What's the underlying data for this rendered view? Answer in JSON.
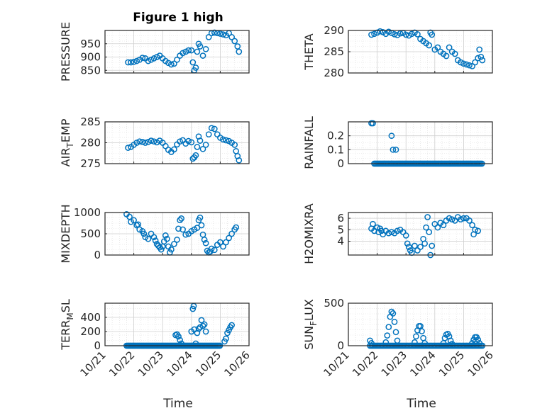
{
  "figure": {
    "title": "Figure 1 high",
    "xlabel": "Time"
  },
  "colors": {
    "marker": "#0072BD",
    "axis": "#262626",
    "grid": "#dcdcdc",
    "background": "#ffffff"
  },
  "chart_data": [
    {
      "id": "pressure",
      "type": "scatter",
      "title": "Figure 1 high",
      "ylabel": "PRESSURE",
      "ylim": [
        840,
        1000
      ],
      "yticks": [
        850,
        900,
        950
      ],
      "ytick_labels": [
        "850",
        "900",
        "950"
      ],
      "xlim": [
        "10/21",
        "10/26"
      ],
      "grid": true,
      "xtick_labels_visible": false,
      "points": [
        [
          21.8,
          880
        ],
        [
          21.9,
          880
        ],
        [
          22.0,
          882
        ],
        [
          22.1,
          885
        ],
        [
          22.2,
          890
        ],
        [
          22.3,
          897
        ],
        [
          22.4,
          895
        ],
        [
          22.5,
          885
        ],
        [
          22.6,
          890
        ],
        [
          22.7,
          895
        ],
        [
          22.8,
          900
        ],
        [
          22.9,
          905
        ],
        [
          23.0,
          895
        ],
        [
          23.1,
          885
        ],
        [
          23.2,
          878
        ],
        [
          23.3,
          872
        ],
        [
          23.4,
          875
        ],
        [
          23.5,
          890
        ],
        [
          23.6,
          905
        ],
        [
          23.7,
          915
        ],
        [
          23.8,
          920
        ],
        [
          23.9,
          925
        ],
        [
          24.0,
          925
        ],
        [
          24.05,
          880
        ],
        [
          24.1,
          850
        ],
        [
          24.15,
          860
        ],
        [
          24.2,
          920
        ],
        [
          24.25,
          950
        ],
        [
          24.3,
          940
        ],
        [
          24.4,
          905
        ],
        [
          24.5,
          930
        ],
        [
          24.6,
          975
        ],
        [
          24.7,
          990
        ],
        [
          24.8,
          992
        ],
        [
          24.9,
          990
        ],
        [
          25.0,
          988
        ],
        [
          25.1,
          985
        ],
        [
          25.2,
          982
        ],
        [
          25.3,
          990
        ],
        [
          25.4,
          975
        ],
        [
          25.5,
          960
        ],
        [
          25.6,
          940
        ],
        [
          25.65,
          920
        ]
      ]
    },
    {
      "id": "theta",
      "type": "scatter",
      "ylabel": "THETA",
      "ylim": [
        280,
        290
      ],
      "yticks": [
        280,
        285,
        290
      ],
      "ytick_labels": [
        "280",
        "285",
        "290"
      ],
      "xlim": [
        "10/21",
        "10/26"
      ],
      "grid": true,
      "xtick_labels_visible": false,
      "points": [
        [
          21.8,
          289
        ],
        [
          21.9,
          289.2
        ],
        [
          22.0,
          289.5
        ],
        [
          22.1,
          289.8
        ],
        [
          22.2,
          289.6
        ],
        [
          22.3,
          289.2
        ],
        [
          22.4,
          289.7
        ],
        [
          22.5,
          289.4
        ],
        [
          22.6,
          289.1
        ],
        [
          22.7,
          288.9
        ],
        [
          22.8,
          289.3
        ],
        [
          22.9,
          289.4
        ],
        [
          23.0,
          289.0
        ],
        [
          23.1,
          288.8
        ],
        [
          23.2,
          289.2
        ],
        [
          23.3,
          289.5
        ],
        [
          23.4,
          289.1
        ],
        [
          23.5,
          288.0
        ],
        [
          23.6,
          287.5
        ],
        [
          23.7,
          287.0
        ],
        [
          23.8,
          286.5
        ],
        [
          23.85,
          289.5
        ],
        [
          23.9,
          289.0
        ],
        [
          24.0,
          285.5
        ],
        [
          24.1,
          286.0
        ],
        [
          24.2,
          285.0
        ],
        [
          24.3,
          284.5
        ],
        [
          24.4,
          284.0
        ],
        [
          24.5,
          286.0
        ],
        [
          24.6,
          285.0
        ],
        [
          24.7,
          284.5
        ],
        [
          24.8,
          283.0
        ],
        [
          24.9,
          282.5
        ],
        [
          25.0,
          282.2
        ],
        [
          25.1,
          282.0
        ],
        [
          25.2,
          281.8
        ],
        [
          25.3,
          281.6
        ],
        [
          25.4,
          282.5
        ],
        [
          25.5,
          283.5
        ],
        [
          25.55,
          285.5
        ],
        [
          25.6,
          283.8
        ],
        [
          25.65,
          283.0
        ]
      ]
    },
    {
      "id": "air_temp",
      "type": "scatter",
      "ylabel": "AIR_TEMP",
      "ylabel_subscript": "T",
      "ylim": [
        275,
        285
      ],
      "yticks": [
        275,
        280,
        285
      ],
      "ytick_labels": [
        "275",
        "280",
        "285"
      ],
      "xlim": [
        "10/21",
        "10/26"
      ],
      "grid": true,
      "xtick_labels_visible": false,
      "points": [
        [
          21.8,
          278.8
        ],
        [
          21.9,
          279
        ],
        [
          22.0,
          279.5
        ],
        [
          22.1,
          280
        ],
        [
          22.2,
          280.3
        ],
        [
          22.3,
          280.2
        ],
        [
          22.4,
          280
        ],
        [
          22.5,
          280.2
        ],
        [
          22.6,
          280.5
        ],
        [
          22.7,
          280.3
        ],
        [
          22.8,
          280.1
        ],
        [
          22.9,
          280.5
        ],
        [
          23.0,
          280
        ],
        [
          23.1,
          279.2
        ],
        [
          23.2,
          278.3
        ],
        [
          23.3,
          277.8
        ],
        [
          23.4,
          278.4
        ],
        [
          23.5,
          279.6
        ],
        [
          23.6,
          280.3
        ],
        [
          23.7,
          280.6
        ],
        [
          23.8,
          279.8
        ],
        [
          23.9,
          280.4
        ],
        [
          24.0,
          280.1
        ],
        [
          24.05,
          276.2
        ],
        [
          24.1,
          276.5
        ],
        [
          24.15,
          277
        ],
        [
          24.2,
          279
        ],
        [
          24.25,
          281.5
        ],
        [
          24.3,
          280.5
        ],
        [
          24.4,
          278.5
        ],
        [
          24.5,
          279.5
        ],
        [
          24.6,
          282
        ],
        [
          24.7,
          283.5
        ],
        [
          24.8,
          283.3
        ],
        [
          24.9,
          282
        ],
        [
          25.0,
          281.2
        ],
        [
          25.1,
          280.8
        ],
        [
          25.2,
          280.6
        ],
        [
          25.3,
          280.4
        ],
        [
          25.4,
          280
        ],
        [
          25.5,
          279.5
        ],
        [
          25.55,
          278
        ],
        [
          25.6,
          276.8
        ],
        [
          25.65,
          275.8
        ]
      ]
    },
    {
      "id": "rainfall",
      "type": "scatter",
      "ylabel": "RAINFALL",
      "ylim": [
        0,
        0.3
      ],
      "yticks": [
        0,
        0.1,
        0.2
      ],
      "ytick_labels": [
        "0",
        "0.1",
        "0.2"
      ],
      "xlim": [
        "10/21",
        "10/26"
      ],
      "grid": true,
      "xtick_labels_visible": false,
      "zero_run": {
        "x_start": 21.9,
        "x_end": 25.65,
        "step": 0.045
      },
      "points": [
        [
          21.8,
          0.29
        ],
        [
          21.85,
          0.29
        ],
        [
          22.5,
          0.2
        ],
        [
          22.55,
          0.1
        ],
        [
          22.65,
          0.1
        ]
      ]
    },
    {
      "id": "mixdepth",
      "type": "scatter",
      "ylabel": "MIXDEPTH",
      "ylim": [
        0,
        1000
      ],
      "yticks": [
        0,
        500,
        1000
      ],
      "ytick_labels": [
        "0",
        "500",
        "1000"
      ],
      "xlim": [
        "10/21",
        "10/26"
      ],
      "grid": true,
      "xtick_labels_visible": false,
      "points": [
        [
          21.75,
          960
        ],
        [
          21.85,
          900
        ],
        [
          21.9,
          780
        ],
        [
          22.0,
          820
        ],
        [
          22.1,
          700
        ],
        [
          22.15,
          720
        ],
        [
          22.2,
          600
        ],
        [
          22.3,
          560
        ],
        [
          22.35,
          500
        ],
        [
          22.4,
          420
        ],
        [
          22.5,
          380
        ],
        [
          22.6,
          500
        ],
        [
          22.7,
          420
        ],
        [
          22.75,
          340
        ],
        [
          22.8,
          260
        ],
        [
          22.85,
          220
        ],
        [
          22.9,
          180
        ],
        [
          22.95,
          130
        ],
        [
          23.0,
          200
        ],
        [
          23.05,
          320
        ],
        [
          23.1,
          460
        ],
        [
          23.15,
          380
        ],
        [
          23.2,
          200
        ],
        [
          23.25,
          60
        ],
        [
          23.3,
          130
        ],
        [
          23.4,
          260
        ],
        [
          23.5,
          360
        ],
        [
          23.55,
          620
        ],
        [
          23.6,
          820
        ],
        [
          23.65,
          860
        ],
        [
          23.7,
          600
        ],
        [
          23.8,
          480
        ],
        [
          23.9,
          500
        ],
        [
          24.0,
          560
        ],
        [
          24.1,
          600
        ],
        [
          24.2,
          640
        ],
        [
          24.25,
          820
        ],
        [
          24.3,
          880
        ],
        [
          24.35,
          700
        ],
        [
          24.4,
          480
        ],
        [
          24.45,
          360
        ],
        [
          24.5,
          280
        ],
        [
          24.55,
          100
        ],
        [
          24.6,
          60
        ],
        [
          24.65,
          80
        ],
        [
          24.7,
          150
        ],
        [
          24.8,
          120
        ],
        [
          24.9,
          240
        ],
        [
          25.0,
          300
        ],
        [
          25.1,
          200
        ],
        [
          25.2,
          300
        ],
        [
          25.3,
          400
        ],
        [
          25.4,
          500
        ],
        [
          25.5,
          600
        ],
        [
          25.55,
          650
        ]
      ]
    },
    {
      "id": "h2omixra",
      "type": "scatter",
      "ylabel": "H2OMIXRA",
      "ylim": [
        2.8,
        6.5
      ],
      "yticks": [
        4,
        5,
        6
      ],
      "ytick_labels": [
        "4",
        "5",
        "6"
      ],
      "xlim": [
        "10/21",
        "10/26"
      ],
      "grid": true,
      "xtick_labels_visible": false,
      "points": [
        [
          21.8,
          5.1
        ],
        [
          21.85,
          5.5
        ],
        [
          21.9,
          4.9
        ],
        [
          22.0,
          5.2
        ],
        [
          22.05,
          4.8
        ],
        [
          22.1,
          5.1
        ],
        [
          22.15,
          4.9
        ],
        [
          22.2,
          4.6
        ],
        [
          22.3,
          4.9
        ],
        [
          22.4,
          4.7
        ],
        [
          22.5,
          4.8
        ],
        [
          22.6,
          4.7
        ],
        [
          22.7,
          4.9
        ],
        [
          22.8,
          5.0
        ],
        [
          22.9,
          4.8
        ],
        [
          23.0,
          4.5
        ],
        [
          23.05,
          3.8
        ],
        [
          23.1,
          3.5
        ],
        [
          23.15,
          3.2
        ],
        [
          23.2,
          3.0
        ],
        [
          23.3,
          3.6
        ],
        [
          23.4,
          3.2
        ],
        [
          23.5,
          3.5
        ],
        [
          23.6,
          4.2
        ],
        [
          23.65,
          3.8
        ],
        [
          23.7,
          5.2
        ],
        [
          23.75,
          6.1
        ],
        [
          23.8,
          4.8
        ],
        [
          23.85,
          2.8
        ],
        [
          23.9,
          3.6
        ],
        [
          24.0,
          5.5
        ],
        [
          24.1,
          5.2
        ],
        [
          24.2,
          5.6
        ],
        [
          24.3,
          5.4
        ],
        [
          24.4,
          5.8
        ],
        [
          24.5,
          6.0
        ],
        [
          24.6,
          5.9
        ],
        [
          24.7,
          5.8
        ],
        [
          24.8,
          6.1
        ],
        [
          24.9,
          5.9
        ],
        [
          25.0,
          6.0
        ],
        [
          25.1,
          6.0
        ],
        [
          25.2,
          5.8
        ],
        [
          25.3,
          5.4
        ],
        [
          25.35,
          4.6
        ],
        [
          25.4,
          5.0
        ],
        [
          25.5,
          4.9
        ]
      ]
    },
    {
      "id": "terr_msl",
      "type": "scatter",
      "ylabel": "TERR_MSL",
      "ylabel_subscript": "M",
      "ylim": [
        0,
        600
      ],
      "yticks": [
        0,
        200,
        400
      ],
      "ytick_labels": [
        "0",
        "200",
        "400"
      ],
      "xlim": [
        "10/21",
        "10/26"
      ],
      "grid": true,
      "xticks": [
        21,
        22,
        23,
        24,
        25,
        26
      ],
      "xtick_labels": [
        "10/21",
        "10/22",
        "10/23",
        "10/24",
        "10/25",
        "10/26"
      ],
      "zero_run": {
        "x_start": 21.75,
        "x_end": 25.0,
        "step": 0.04
      },
      "points": [
        [
          23.45,
          150
        ],
        [
          23.5,
          160
        ],
        [
          23.55,
          130
        ],
        [
          23.6,
          80
        ],
        [
          23.65,
          30
        ],
        [
          24.0,
          200
        ],
        [
          24.05,
          520
        ],
        [
          24.08,
          560
        ],
        [
          24.1,
          230
        ],
        [
          24.15,
          30
        ],
        [
          24.2,
          180
        ],
        [
          24.25,
          240
        ],
        [
          24.3,
          260
        ],
        [
          24.35,
          360
        ],
        [
          24.4,
          280
        ],
        [
          24.45,
          300
        ],
        [
          24.5,
          200
        ],
        [
          25.15,
          60
        ],
        [
          25.2,
          100
        ],
        [
          25.25,
          180
        ],
        [
          25.3,
          220
        ],
        [
          25.35,
          260
        ],
        [
          25.4,
          290
        ]
      ]
    },
    {
      "id": "sun_flux",
      "type": "scatter",
      "ylabel": "SUN_FLUX",
      "ylabel_subscript": "F",
      "ylim": [
        0,
        500
      ],
      "yticks": [
        0,
        500
      ],
      "ytick_labels": [
        "0",
        "500"
      ],
      "xlim": [
        "10/21",
        "10/26"
      ],
      "grid": true,
      "xticks": [
        21,
        22,
        23,
        24,
        25,
        26
      ],
      "xtick_labels": [
        "10/21",
        "10/22",
        "10/23",
        "10/24",
        "10/25",
        "10/26"
      ],
      "zero_run": {
        "x_start": 21.75,
        "x_end": 25.65,
        "step": 0.05
      },
      "points": [
        [
          21.75,
          60
        ],
        [
          21.8,
          30
        ],
        [
          22.3,
          40
        ],
        [
          22.35,
          120
        ],
        [
          22.4,
          220
        ],
        [
          22.45,
          340
        ],
        [
          22.5,
          400
        ],
        [
          22.55,
          380
        ],
        [
          22.6,
          280
        ],
        [
          22.65,
          160
        ],
        [
          22.7,
          60
        ],
        [
          23.3,
          40
        ],
        [
          23.35,
          110
        ],
        [
          23.4,
          180
        ],
        [
          23.45,
          230
        ],
        [
          23.5,
          230
        ],
        [
          23.55,
          170
        ],
        [
          23.6,
          90
        ],
        [
          23.65,
          30
        ],
        [
          24.3,
          30
        ],
        [
          24.35,
          90
        ],
        [
          24.4,
          130
        ],
        [
          24.45,
          140
        ],
        [
          24.5,
          110
        ],
        [
          24.55,
          60
        ],
        [
          24.6,
          20
        ],
        [
          25.3,
          30
        ],
        [
          25.35,
          70
        ],
        [
          25.4,
          100
        ],
        [
          25.45,
          100
        ],
        [
          25.5,
          70
        ],
        [
          25.55,
          30
        ]
      ]
    }
  ]
}
